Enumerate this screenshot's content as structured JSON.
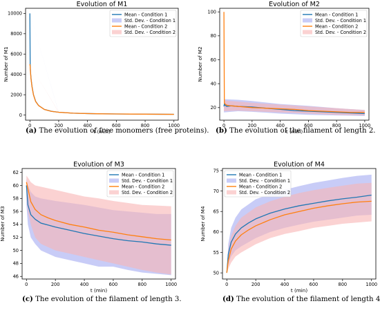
{
  "colors": {
    "cond1": "#1f77b4",
    "cond2": "#ff7f0e",
    "band1": "#aab0f3",
    "band2": "#f9b4b4"
  },
  "chart_data": [
    {
      "type": "line",
      "title": "Evolution of M1",
      "xlabel": "t (min)",
      "ylabel": "Number of M1",
      "xlim": [
        -30,
        1030
      ],
      "ylim": [
        -500,
        10500
      ],
      "xticks": [
        0,
        200,
        400,
        600,
        800,
        1000
      ],
      "yticks": [
        0,
        2000,
        4000,
        6000,
        8000,
        10000
      ],
      "legend_position": "top-right",
      "legend": [
        "Mean - Condition 1",
        "Std. Dev. - Condition 1",
        "Mean - Condition 2",
        "Std. Dev. - Condition 2"
      ],
      "series": [
        {
          "name": "Mean - Condition 1",
          "x": [
            0,
            2,
            4,
            8,
            15,
            25,
            40,
            60,
            100,
            150,
            200,
            300,
            400,
            500,
            600,
            700,
            800,
            900,
            1000
          ],
          "y": [
            10000,
            5000,
            4300,
            3600,
            2800,
            2000,
            1350,
            950,
            560,
            370,
            280,
            190,
            150,
            125,
            110,
            100,
            90,
            82,
            75
          ]
        },
        {
          "name": "Mean - Condition 2",
          "x": [
            0,
            2,
            4,
            8,
            15,
            25,
            40,
            60,
            100,
            150,
            200,
            300,
            400,
            500,
            600,
            700,
            800,
            900,
            1000
          ],
          "y": [
            5000,
            4800,
            4250,
            3550,
            2750,
            1980,
            1330,
            940,
            555,
            368,
            278,
            189,
            149,
            124,
            109,
            99,
            89,
            81,
            74
          ]
        }
      ],
      "bands": [
        {
          "name": "Std. Dev. - Condition 1",
          "x": [
            0,
            200,
            400,
            600,
            800,
            1000
          ],
          "lower": [
            10000,
            270,
            145,
            105,
            85,
            70
          ],
          "upper": [
            10000,
            290,
            155,
            115,
            95,
            80
          ]
        },
        {
          "name": "Std. Dev. - Condition 2",
          "x": [
            0,
            200,
            400,
            600,
            800,
            1000
          ],
          "lower": [
            5000,
            268,
            144,
            104,
            84,
            69
          ],
          "upper": [
            5000,
            288,
            154,
            114,
            94,
            79
          ]
        }
      ],
      "caption_label": "(a)",
      "caption": "The evolution of free monomers (free proteins)."
    },
    {
      "type": "line",
      "title": "Evolution of M2",
      "xlabel": "t (min)",
      "ylabel": "Number of M2",
      "xlim": [
        -30,
        1030
      ],
      "ylim": [
        9.5,
        103
      ],
      "xticks": [
        0,
        200,
        400,
        600,
        800,
        1000
      ],
      "yticks": [
        20,
        40,
        60,
        80,
        100
      ],
      "legend_position": "top-right",
      "legend": [
        "Mean - Condition 1",
        "Std. Dev. - Condition 1",
        "Mean - Condition 2",
        "Std. Dev. - Condition 2"
      ],
      "series": [
        {
          "name": "Mean - Condition 1",
          "x": [
            0,
            3,
            8,
            20,
            50,
            100,
            200,
            300,
            400,
            500,
            600,
            700,
            800,
            900,
            1000
          ],
          "y": [
            21,
            23,
            22,
            21,
            21.5,
            21,
            20.5,
            19.5,
            18.5,
            17.5,
            17,
            16.5,
            16,
            15.5,
            15
          ]
        },
        {
          "name": "Mean - Condition 2",
          "x": [
            0,
            3,
            8,
            20,
            50,
            100,
            200,
            300,
            400,
            500,
            600,
            700,
            800,
            900,
            1000
          ],
          "y": [
            100,
            24,
            23,
            22,
            21.5,
            21,
            20,
            19.5,
            19,
            18.5,
            17.5,
            17,
            16.5,
            16,
            16
          ]
        }
      ],
      "bands": [
        {
          "name": "Std. Dev. - Condition 1",
          "x": [
            0,
            100,
            200,
            400,
            600,
            800,
            1000
          ],
          "lower": [
            16,
            17,
            16.5,
            15,
            14,
            13.5,
            13
          ],
          "upper": [
            27,
            26.5,
            25.5,
            23,
            21.5,
            19.5,
            18
          ]
        },
        {
          "name": "Std. Dev. - Condition 2",
          "x": [
            0,
            100,
            200,
            400,
            600,
            800,
            1000
          ],
          "lower": [
            17,
            17.5,
            17,
            16,
            15,
            14,
            13.5
          ],
          "upper": [
            26,
            25,
            24,
            22.5,
            21,
            19.5,
            18
          ]
        }
      ],
      "caption_label": "(b)",
      "caption": "The evolution of the filament of length 2."
    },
    {
      "type": "line",
      "title": "Evolution of M3",
      "xlabel": "t (min)",
      "ylabel": "Number of M3",
      "xlim": [
        -30,
        1030
      ],
      "ylim": [
        45.6,
        62.6
      ],
      "xticks": [
        0,
        200,
        400,
        600,
        800,
        1000
      ],
      "yticks": [
        46,
        48,
        50,
        52,
        54,
        56,
        58,
        60,
        62
      ],
      "legend_position": "top-right",
      "legend": [
        "Mean - Condition 1",
        "Std. Dev. - Condition 1",
        "Mean - Condition 2",
        "Std. Dev. - Condition 2"
      ],
      "series": [
        {
          "name": "Mean - Condition 1",
          "x": [
            0,
            10,
            30,
            60,
            100,
            150,
            200,
            300,
            400,
            500,
            600,
            700,
            800,
            900,
            1000
          ],
          "y": [
            60,
            57,
            55.5,
            54.8,
            54.2,
            53.9,
            53.6,
            53.1,
            52.6,
            52.2,
            51.8,
            51.5,
            51.3,
            51,
            50.8
          ]
        },
        {
          "name": "Mean - Condition 2",
          "x": [
            0,
            10,
            30,
            60,
            100,
            150,
            200,
            300,
            400,
            500,
            600,
            700,
            800,
            900,
            1000
          ],
          "y": [
            60.5,
            59.5,
            57.5,
            56.3,
            55.5,
            55,
            54.6,
            54,
            53.6,
            53.1,
            52.8,
            52.4,
            52.1,
            51.8,
            51.6
          ]
        }
      ],
      "bands": [
        {
          "name": "Std. Dev. - Condition 1",
          "x": [
            0,
            10,
            30,
            60,
            100,
            200,
            300,
            400,
            500,
            600,
            700,
            800,
            900,
            1000
          ],
          "lower": [
            57,
            54,
            52,
            51,
            50,
            49,
            48.5,
            48,
            47.5,
            47.5,
            47,
            46.6,
            46.4,
            46.2
          ],
          "upper": [
            61,
            60,
            59,
            58.3,
            58,
            57.6,
            57.3,
            57,
            56.6,
            56.2,
            56,
            55.8,
            55.6,
            55.6
          ]
        },
        {
          "name": "Std. Dev. - Condition 2",
          "x": [
            0,
            10,
            30,
            60,
            100,
            200,
            300,
            400,
            500,
            600,
            700,
            800,
            900,
            1000
          ],
          "lower": [
            58,
            56,
            54,
            52,
            51,
            50,
            49.5,
            49,
            48.5,
            48,
            47.5,
            47,
            46.6,
            46.3
          ],
          "upper": [
            61.5,
            61.2,
            60.5,
            60,
            59.8,
            59.3,
            58.8,
            58.3,
            58,
            57.6,
            57.3,
            57,
            56.9,
            56.8
          ]
        }
      ],
      "caption_label": "(c)",
      "caption": "The evolution of the filament of length 3."
    },
    {
      "type": "line",
      "title": "Evolution of M4",
      "xlabel": "t (min)",
      "ylabel": "Number of M4",
      "xlim": [
        -30,
        1030
      ],
      "ylim": [
        48.5,
        75.5
      ],
      "xticks": [
        0,
        200,
        400,
        600,
        800,
        1000
      ],
      "yticks": [
        50,
        55,
        60,
        65,
        70,
        75
      ],
      "legend_position": "top-left",
      "legend": [
        "Mean - Condition 1",
        "Std. Dev. - Condition 1",
        "Mean - Condition 2",
        "Std. Dev. - Condition 2"
      ],
      "series": [
        {
          "name": "Mean - Condition 1",
          "x": [
            0,
            10,
            30,
            60,
            100,
            150,
            200,
            300,
            400,
            500,
            600,
            700,
            800,
            900,
            1000
          ],
          "y": [
            50,
            54.5,
            57.5,
            59.5,
            61,
            62.2,
            63.2,
            64.6,
            65.6,
            66.4,
            67,
            67.6,
            68.1,
            68.5,
            69
          ]
        },
        {
          "name": "Mean - Condition 2",
          "x": [
            0,
            10,
            30,
            60,
            100,
            150,
            200,
            300,
            400,
            500,
            600,
            700,
            800,
            900,
            1000
          ],
          "y": [
            50,
            53,
            55.8,
            57.8,
            59.3,
            60.5,
            61.5,
            63,
            64.2,
            65,
            65.8,
            66.4,
            66.9,
            67.3,
            67.5
          ]
        }
      ],
      "bands": [
        {
          "name": "Std. Dev. - Condition 1",
          "x": [
            0,
            10,
            30,
            60,
            100,
            200,
            300,
            400,
            500,
            600,
            700,
            800,
            900,
            1000
          ],
          "lower": [
            50,
            52,
            54,
            55.5,
            56.5,
            58.5,
            60,
            61,
            61.8,
            62.5,
            63,
            63.5,
            64,
            64.2
          ],
          "upper": [
            50,
            57,
            61,
            63.5,
            65.5,
            68,
            69.3,
            70.3,
            71.2,
            72,
            72.6,
            73.2,
            73.7,
            74
          ]
        },
        {
          "name": "Std. Dev. - Condition 2",
          "x": [
            0,
            10,
            30,
            60,
            100,
            200,
            300,
            400,
            500,
            600,
            700,
            800,
            900,
            1000
          ],
          "lower": [
            50,
            51,
            52.5,
            54,
            55,
            57,
            58.5,
            59.5,
            60.2,
            61,
            61.5,
            62,
            62.3,
            62.6
          ],
          "upper": [
            50,
            55.5,
            59,
            61.5,
            63.5,
            66,
            67.5,
            68.6,
            69.5,
            70.2,
            70.8,
            71.3,
            71.8,
            72
          ]
        }
      ],
      "caption_label": "(d)",
      "caption": "The evolution of the filament of length 4."
    }
  ]
}
